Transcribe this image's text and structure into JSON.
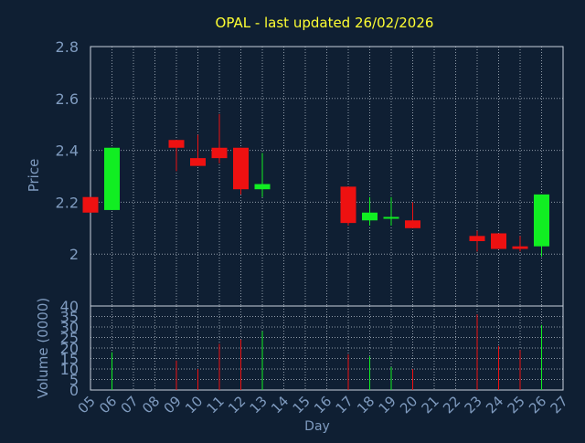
{
  "title": "OPAL - last updated 26/02/2026",
  "colors": {
    "background": "#0f1f33",
    "title": "#ffff33",
    "axis_text": "#7f9bbf",
    "grid": "#c8d2dc",
    "up": "#11ee22",
    "down": "#ee1111",
    "frame": "#c8d2dc"
  },
  "chart_data": [
    {
      "type": "candlestick",
      "title": "OPAL - last updated 26/02/2026",
      "xlabel": "",
      "ylabel": "Price",
      "ylim": [
        1.8,
        2.8
      ],
      "yticks": [
        2.8,
        2.6,
        2.4,
        2.2,
        2
      ],
      "ytick_labels": [
        "2.8",
        "2.6",
        "2.4",
        "2.2",
        "2"
      ],
      "grid": true,
      "candles": [
        {
          "day": "05",
          "open": 2.22,
          "close": 2.16,
          "high": 2.22,
          "low": 2.16
        },
        {
          "day": "06",
          "open": 2.17,
          "close": 2.41,
          "high": 2.41,
          "low": 2.17
        },
        {
          "day": "09",
          "open": 2.44,
          "close": 2.41,
          "high": 2.44,
          "low": 2.32
        },
        {
          "day": "10",
          "open": 2.37,
          "close": 2.34,
          "high": 2.46,
          "low": 2.34
        },
        {
          "day": "11",
          "open": 2.41,
          "close": 2.37,
          "high": 2.54,
          "low": 2.35
        },
        {
          "day": "12",
          "open": 2.41,
          "close": 2.25,
          "high": 2.41,
          "low": 2.23
        },
        {
          "day": "13",
          "open": 2.25,
          "close": 2.27,
          "high": 2.39,
          "low": 2.22
        },
        {
          "day": "17",
          "open": 2.26,
          "close": 2.12,
          "high": 2.26,
          "low": 2.11
        },
        {
          "day": "18",
          "open": 2.13,
          "close": 2.16,
          "high": 2.22,
          "low": 2.11
        },
        {
          "day": "19",
          "open": 2.14,
          "close": 2.14,
          "high": 2.22,
          "low": 2.11
        },
        {
          "day": "20",
          "open": 2.13,
          "close": 2.1,
          "high": 2.2,
          "low": 2.1
        },
        {
          "day": "23",
          "open": 2.07,
          "close": 2.05,
          "high": 2.09,
          "low": 2.01
        },
        {
          "day": "24",
          "open": 2.08,
          "close": 2.02,
          "high": 2.08,
          "low": 2.02
        },
        {
          "day": "25",
          "open": 2.03,
          "close": 2.02,
          "high": 2.07,
          "low": 2.01
        },
        {
          "day": "26",
          "open": 2.03,
          "close": 2.23,
          "high": 2.23,
          "low": 1.99
        }
      ]
    },
    {
      "type": "bar",
      "xlabel": "Day",
      "ylabel": "Volume (0000)",
      "ylim": [
        0,
        40
      ],
      "yticks": [
        40,
        35,
        30,
        25,
        20,
        15,
        10,
        5,
        0
      ],
      "ytick_labels": [
        "40",
        "35",
        "30",
        "25",
        "20",
        "15",
        "10",
        "5",
        "0"
      ],
      "grid": true,
      "categories": [
        "05",
        "06",
        "07",
        "08",
        "09",
        "10",
        "11",
        "12",
        "13",
        "14",
        "15",
        "16",
        "17",
        "18",
        "19",
        "20",
        "21",
        "22",
        "23",
        "24",
        "25",
        "26",
        "27"
      ],
      "bars": [
        {
          "day": "06",
          "value": 18,
          "direction": "up"
        },
        {
          "day": "09",
          "value": 14,
          "direction": "down"
        },
        {
          "day": "10",
          "value": 10,
          "direction": "down"
        },
        {
          "day": "11",
          "value": 22,
          "direction": "down"
        },
        {
          "day": "12",
          "value": 24,
          "direction": "down"
        },
        {
          "day": "13",
          "value": 28,
          "direction": "up"
        },
        {
          "day": "17",
          "value": 17,
          "direction": "down"
        },
        {
          "day": "18",
          "value": 16,
          "direction": "up"
        },
        {
          "day": "19",
          "value": 11,
          "direction": "up"
        },
        {
          "day": "20",
          "value": 10,
          "direction": "down"
        },
        {
          "day": "23",
          "value": 36,
          "direction": "down"
        },
        {
          "day": "24",
          "value": 21,
          "direction": "down"
        },
        {
          "day": "25",
          "value": 19,
          "direction": "down"
        },
        {
          "day": "26",
          "value": 31,
          "direction": "up"
        }
      ]
    }
  ]
}
